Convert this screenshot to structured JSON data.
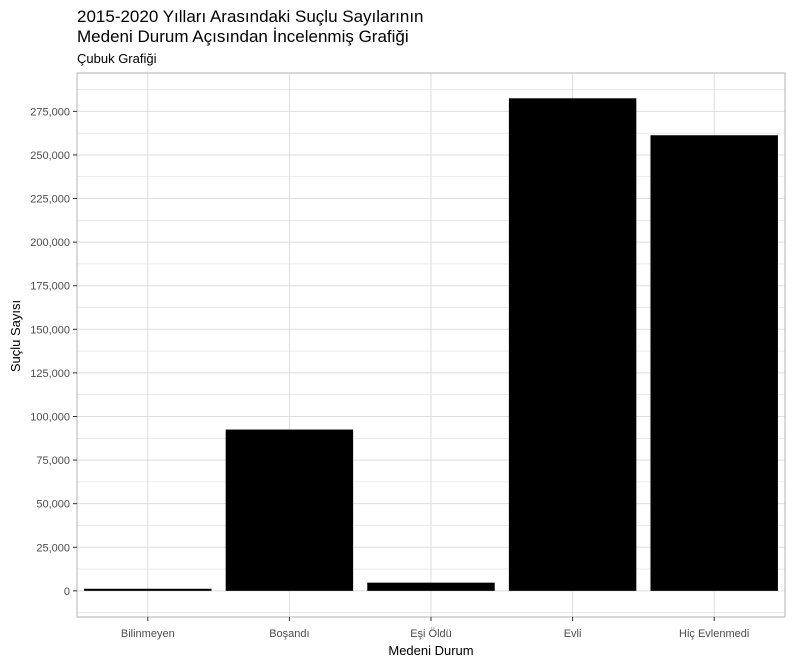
{
  "chart_data": {
    "type": "bar",
    "title": "2015-2020 Yılları Arasındaki Suçlu Sayılarının\nMedeni Durum Açısından İncelenmiş Grafiği",
    "subtitle": "Çubuk Grafiği",
    "xlabel": "Medeni Durum",
    "ylabel": "Suçlu Sayısı",
    "categories": [
      "Bilinmeyen",
      "Boşandı",
      "Eşi Öldü",
      "Evli",
      "Hiç Evlenmedi"
    ],
    "values": [
      1200,
      92500,
      4700,
      282500,
      261300
    ],
    "ylim": [
      -15000,
      297000
    ],
    "yticks": [
      0,
      25000,
      50000,
      75000,
      100000,
      125000,
      150000,
      175000,
      200000,
      225000,
      250000,
      275000
    ],
    "ytick_labels": [
      "0",
      "25,000",
      "50,000",
      "75,000",
      "100,000",
      "125,000",
      "150,000",
      "175,000",
      "200,000",
      "225,000",
      "250,000",
      "275,000"
    ],
    "grid": true,
    "bar_color": "#000000",
    "grid_color": "#dedede",
    "panel_border_color": "#b3b3b3",
    "theme": "light"
  }
}
